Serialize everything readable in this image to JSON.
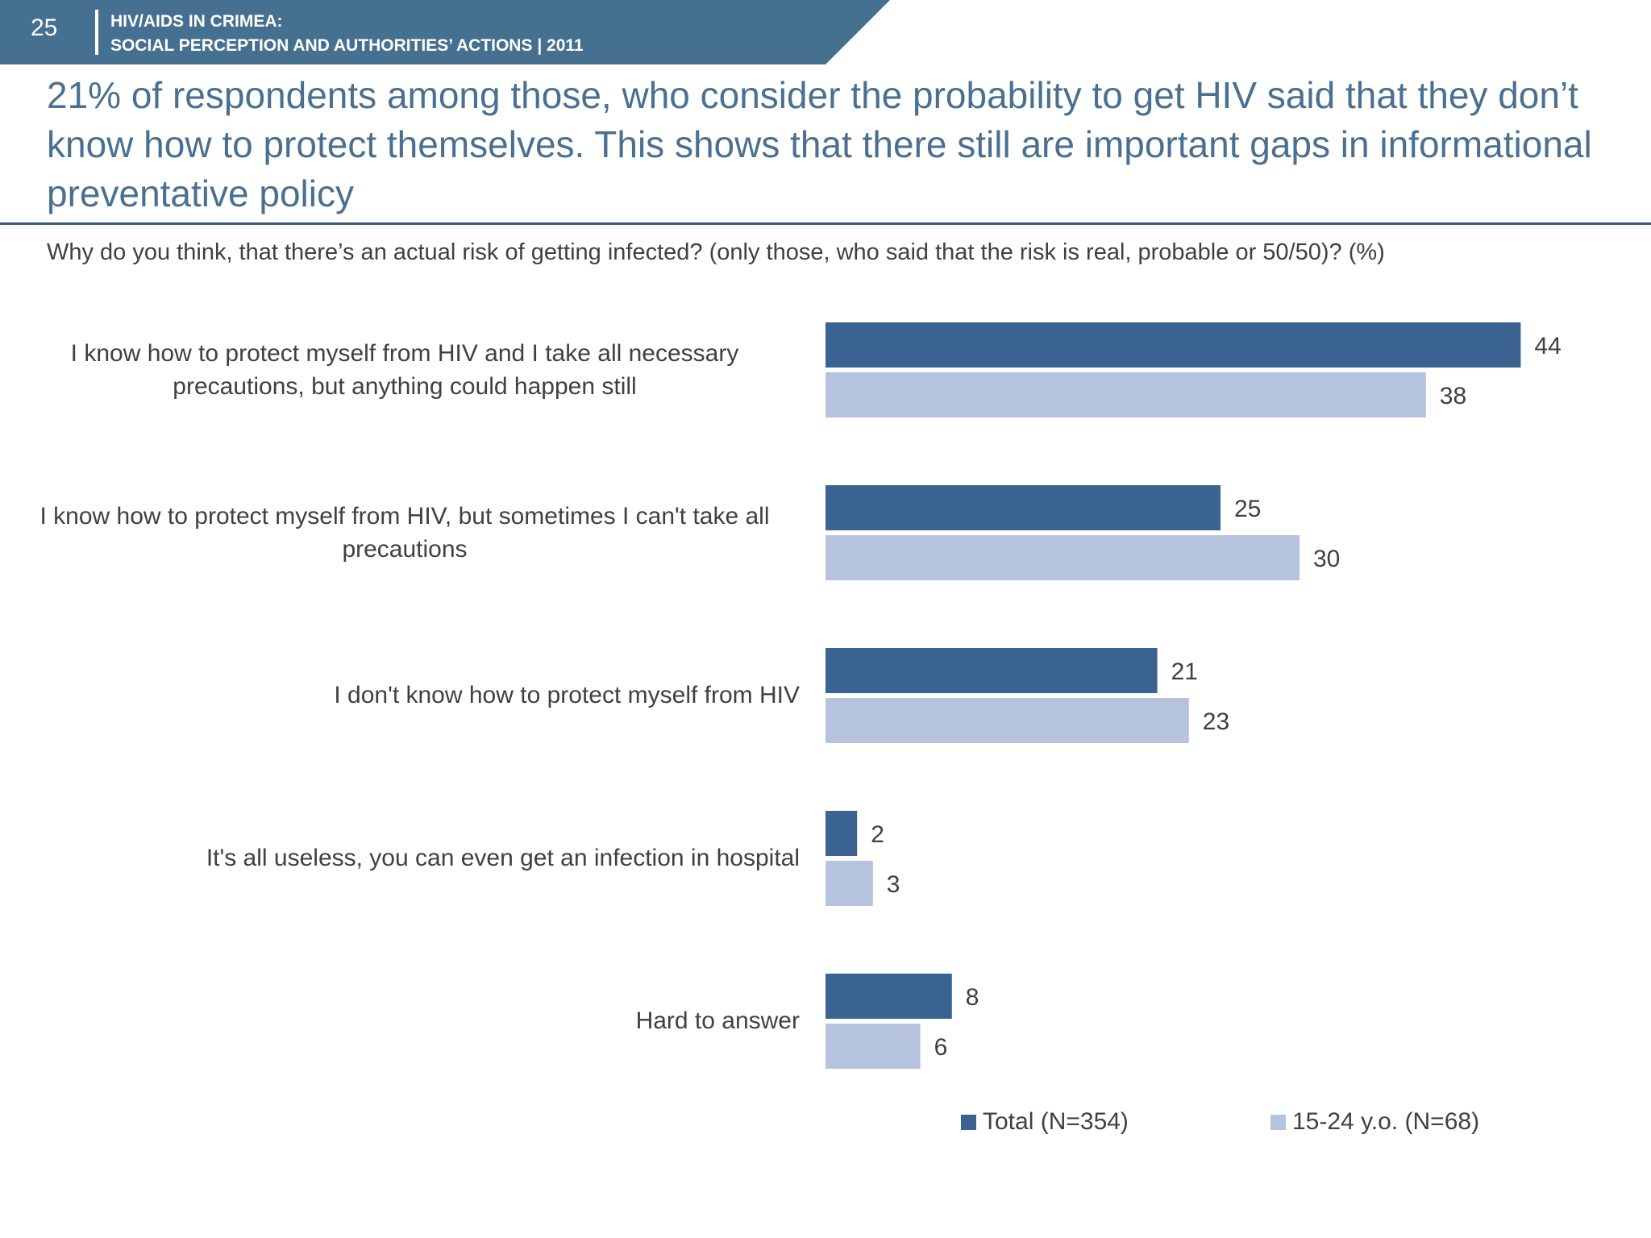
{
  "header": {
    "page_number": "25",
    "title_line1": "HIV/AIDS IN CRIMEA:",
    "title_line2": "SOCIAL PERCEPTION AND AUTHORITIES’ ACTIONS  |  2011",
    "band_color": "#46708f"
  },
  "headline": "21% of respondents among those, who consider the probability to get HIV said that they don’t know how to protect themselves. This shows that there still are important gaps in informational preventative policy",
  "chart_data": {
    "type": "bar",
    "orientation": "horizontal",
    "title": "Why do you think, that there’s an actual risk of getting infected? (only those, who said that the risk is real, probable or 50/50)? (%)",
    "categories": [
      "I know how to protect myself from HIV and I take all necessary precautions, but anything could happen still",
      "I know how to protect myself from HIV, but sometimes I can't take all precautions",
      "I don't know how to protect myself from HIV",
      "It's all useless, you can even get an infection in hospital",
      "Hard to answer"
    ],
    "series": [
      {
        "name": "Total (N=354)",
        "color": "#3b6392",
        "values": [
          44,
          25,
          21,
          2,
          8
        ]
      },
      {
        "name": "15-24 y.o. (N=68)",
        "color": "#b6c3de",
        "values": [
          38,
          30,
          23,
          3,
          6
        ]
      }
    ],
    "xlim": [
      0,
      50
    ],
    "data_labels": true,
    "gridlines": false,
    "legend_position": "bottom"
  }
}
